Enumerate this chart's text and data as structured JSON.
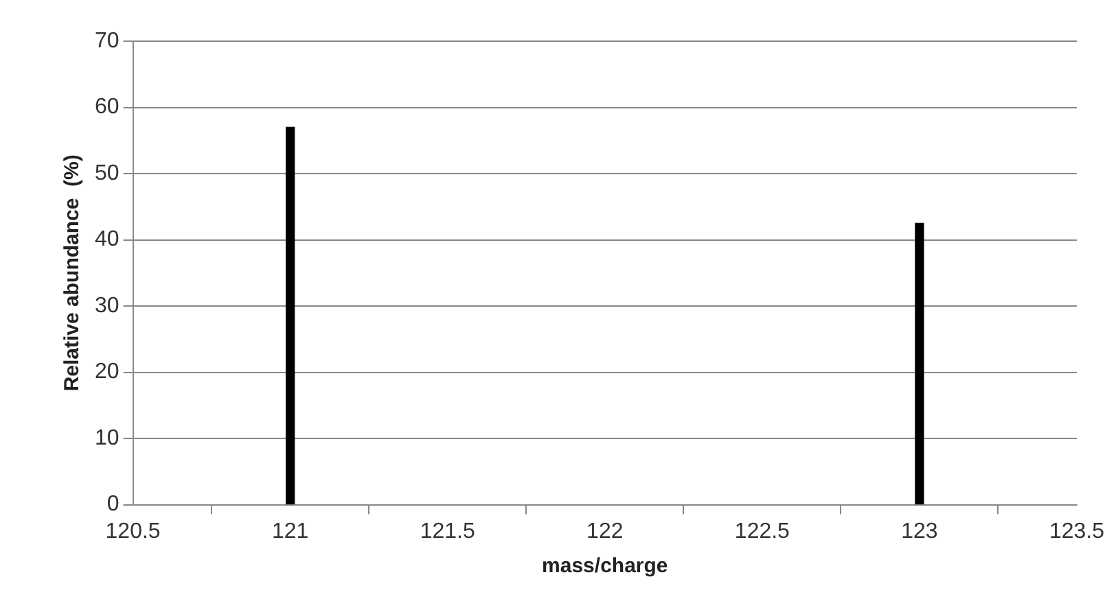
{
  "chart_data": {
    "type": "bar",
    "xlabel": "mass/charge",
    "ylabel": "Relative abundance  (%)",
    "x": [
      121,
      123
    ],
    "values": [
      57,
      42.5
    ],
    "color": "#000000",
    "xlim": [
      120.5,
      123.5
    ],
    "xticks": [
      120.5,
      121,
      121.5,
      122,
      122.5,
      123,
      123.5
    ],
    "ylim": [
      0,
      70
    ],
    "yticks": [
      0,
      10,
      20,
      30,
      40,
      50,
      60,
      70
    ],
    "grid": "y",
    "legend": false
  }
}
